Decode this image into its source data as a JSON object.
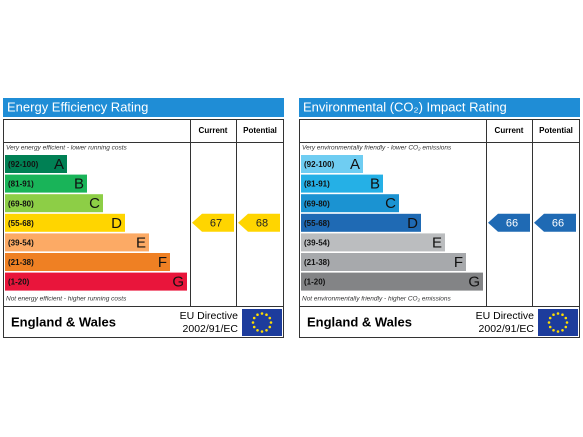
{
  "panels": [
    {
      "title": "Energy Efficiency Rating",
      "headers": [
        "Current",
        "Potential"
      ],
      "top_note": "Very energy efficient - lower running costs",
      "bands": [
        {
          "range": "(92-100)",
          "letter": "A",
          "color": "#008054"
        },
        {
          "range": "(81-91)",
          "letter": "B",
          "color": "#19b459"
        },
        {
          "range": "(69-80)",
          "letter": "C",
          "color": "#8dce46"
        },
        {
          "range": "(55-68)",
          "letter": "D",
          "color": "#ffd500"
        },
        {
          "range": "(39-54)",
          "letter": "E",
          "color": "#fcaa65"
        },
        {
          "range": "(21-38)",
          "letter": "F",
          "color": "#ef8023"
        },
        {
          "range": "(1-20)",
          "letter": "G",
          "color": "#e9153b"
        }
      ],
      "bottom_note": "Not energy efficient - higher running costs",
      "current": 67,
      "potential": 68,
      "region": "England & Wales",
      "directive": [
        "EU Directive",
        "2002/91/EC"
      ]
    },
    {
      "title": "Environmental (CO₂) Impact Rating",
      "headers": [
        "Current",
        "Potential"
      ],
      "top_note": "Very environmentally friendly - lower CO₂ emissions",
      "bands": [
        {
          "range": "(92-100)",
          "letter": "A",
          "color": "#6fcdf2"
        },
        {
          "range": "(81-91)",
          "letter": "B",
          "color": "#25b0e6"
        },
        {
          "range": "(69-80)",
          "letter": "C",
          "color": "#1b93d2"
        },
        {
          "range": "(55-68)",
          "letter": "D",
          "color": "#1f6ab4"
        },
        {
          "range": "(39-54)",
          "letter": "E",
          "color": "#bbbdbf"
        },
        {
          "range": "(21-38)",
          "letter": "F",
          "color": "#a7a9ac"
        },
        {
          "range": "(1-20)",
          "letter": "G",
          "color": "#838486"
        }
      ],
      "bottom_note": "Not environmentally friendly - higher CO₂ emissions",
      "current": 66,
      "potential": 66,
      "region": "England & Wales",
      "directive": [
        "EU Directive",
        "2002/91/EC"
      ]
    }
  ]
}
